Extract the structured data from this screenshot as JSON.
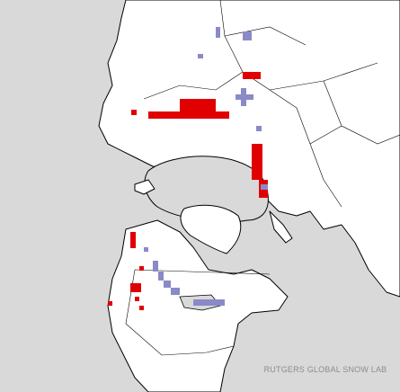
{
  "map": {
    "credit": "RUTGERS GLOBAL SNOW LAB"
  }
}
